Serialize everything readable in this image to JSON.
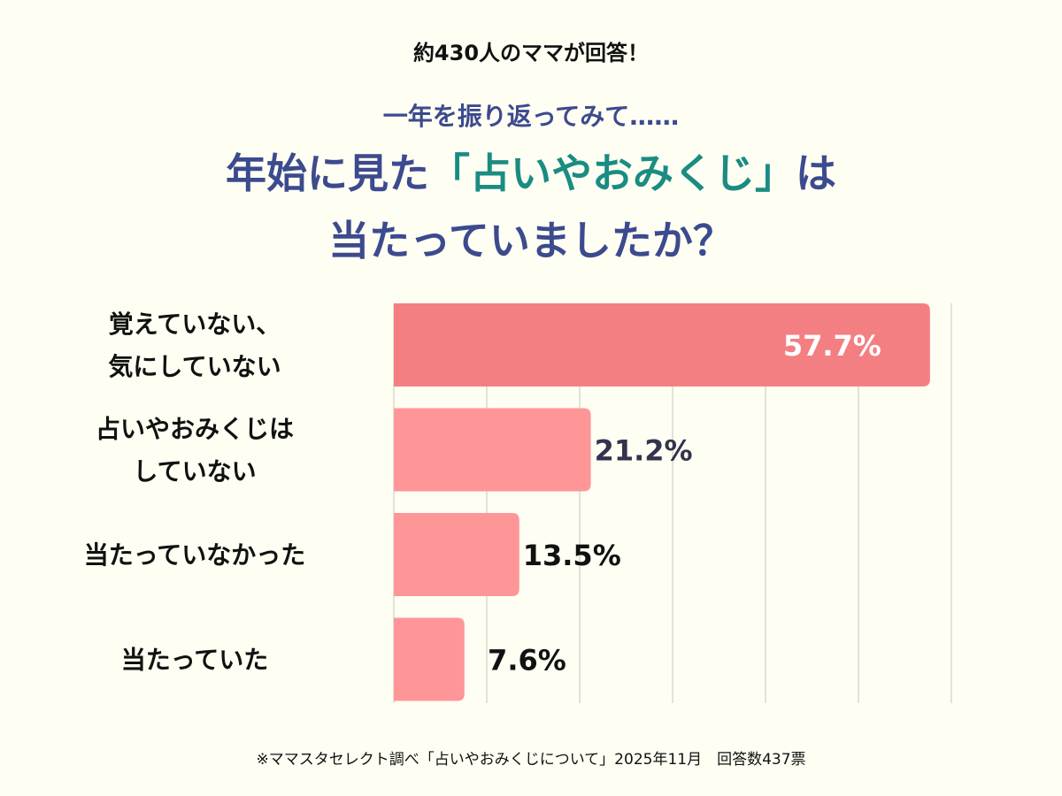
{
  "header": {
    "top_note": "約430人のママが回答！",
    "lead": "一年を振り返ってみて……",
    "title_line1_pre": "年始に見た",
    "title_line1_highlight": "「占いやおみくじ」",
    "title_line1_post": "は",
    "title_line2": "当たっていましたか？"
  },
  "colors": {
    "highlight_bar": "#f47f82",
    "bar": "#fe9698",
    "title": "#3c4a8e",
    "accent": "#1a8c82",
    "grid": "#cfcfc6",
    "background": "#fefef3"
  },
  "chart_data": {
    "type": "bar",
    "orientation": "horizontal",
    "categories": [
      [
        "覚えていない、",
        "気にしていない"
      ],
      [
        "占いやおみくじは",
        "していない"
      ],
      [
        "当たっていなかった"
      ],
      [
        "当たっていた"
      ]
    ],
    "values": [
      57.7,
      21.2,
      13.5,
      7.6
    ],
    "data_labels": [
      "57.7%",
      "21.2%",
      "13.5%",
      "7.6%"
    ],
    "xlim": [
      0,
      60
    ],
    "grid": true,
    "grid_step": 10
  },
  "footnote": "※ママスタセレクト調べ「占いやおみくじについて」2025年11月　回答数437票"
}
